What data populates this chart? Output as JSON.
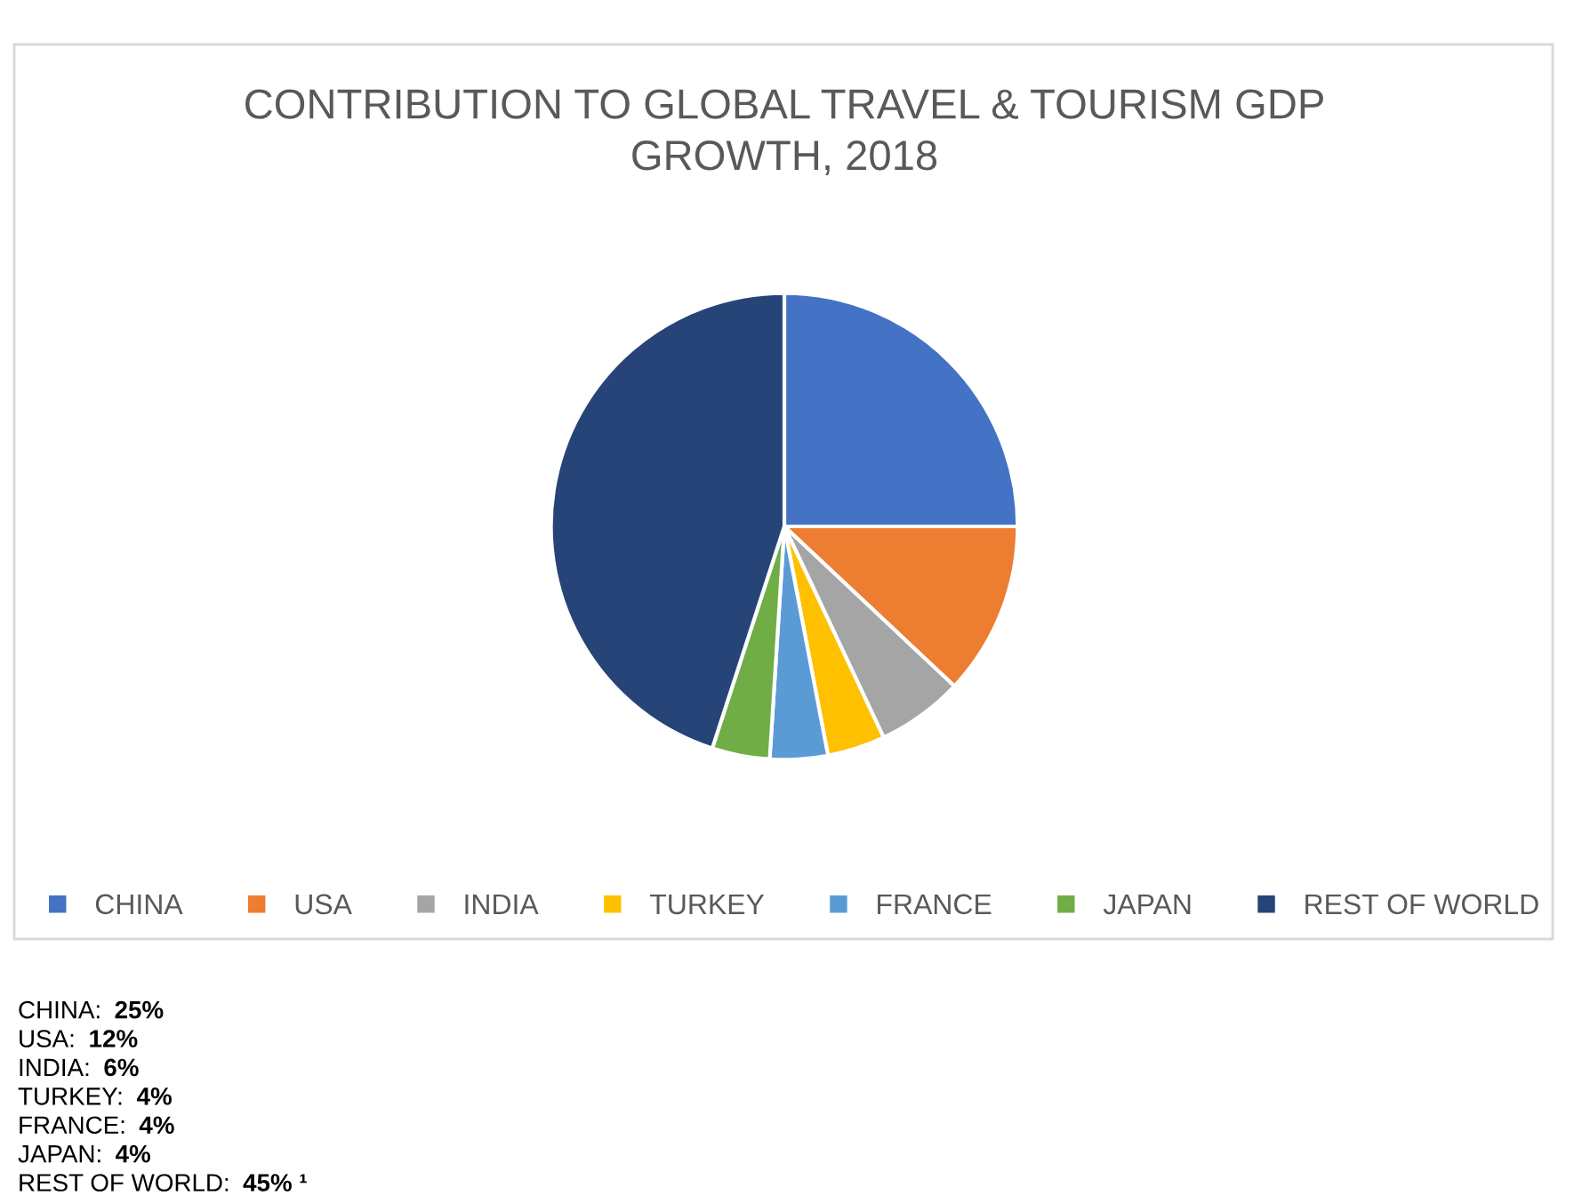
{
  "chart_data": {
    "type": "pie",
    "title": "CONTRIBUTION TO GLOBAL TRAVEL & TOURISM GDP GROWTH, 2018",
    "categories": [
      "CHINA",
      "USA",
      "INDIA",
      "TURKEY",
      "FRANCE",
      "JAPAN",
      "REST OF WORLD"
    ],
    "values": [
      25,
      12,
      6,
      4,
      4,
      4,
      45
    ],
    "colors": [
      "#4472c4",
      "#ed7d31",
      "#a5a5a5",
      "#ffc000",
      "#5b9bd5",
      "#70ad47",
      "#264478"
    ],
    "annotations": [
      "CHINA: 25%",
      "USA: 12%",
      "INDIA: 6%",
      "TURKEY: 4%",
      "FRANCE: 4%",
      "JAPAN: 4%",
      "REST OF WORLD: 45% ¹"
    ],
    "legend": "bottom"
  }
}
